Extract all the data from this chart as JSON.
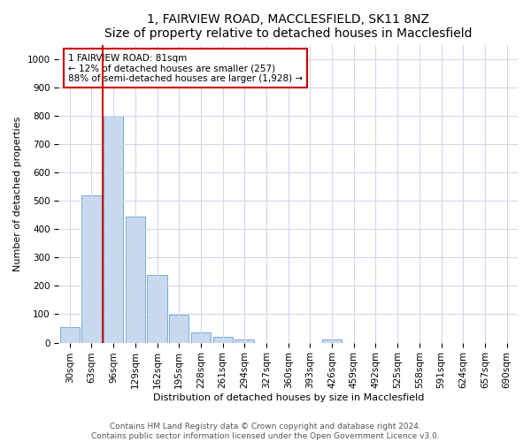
{
  "title1": "1, FAIRVIEW ROAD, MACCLESFIELD, SK11 8NZ",
  "title2": "Size of property relative to detached houses in Macclesfield",
  "xlabel": "Distribution of detached houses by size in Macclesfield",
  "ylabel": "Number of detached properties",
  "categories": [
    "30sqm",
    "63sqm",
    "96sqm",
    "129sqm",
    "162sqm",
    "195sqm",
    "228sqm",
    "261sqm",
    "294sqm",
    "327sqm",
    "360sqm",
    "393sqm",
    "426sqm",
    "459sqm",
    "492sqm",
    "525sqm",
    "558sqm",
    "591sqm",
    "624sqm",
    "657sqm",
    "690sqm"
  ],
  "values": [
    55,
    520,
    800,
    445,
    240,
    98,
    37,
    20,
    12,
    0,
    0,
    0,
    10,
    0,
    0,
    0,
    0,
    0,
    0,
    0,
    0
  ],
  "bar_color": "#c8d8ef",
  "bar_edgecolor": "#7aaad0",
  "vline_x": 1.5,
  "vline_color": "#cc0000",
  "annotation_title": "1 FAIRVIEW ROAD: 81sqm",
  "annotation_line1": "← 12% of detached houses are smaller (257)",
  "annotation_line2": "88% of semi-detached houses are larger (1,928) →",
  "annotation_box_color": "#cc0000",
  "ylim": [
    0,
    1050
  ],
  "yticks": [
    0,
    100,
    200,
    300,
    400,
    500,
    600,
    700,
    800,
    900,
    1000
  ],
  "footer1": "Contains HM Land Registry data © Crown copyright and database right 2024.",
  "footer2": "Contains public sector information licensed under the Open Government Licence v3.0.",
  "background_color": "#ffffff",
  "plot_background": "#ffffff",
  "grid_color": "#d0d8e8",
  "title_fontsize": 10,
  "subtitle_fontsize": 9,
  "axis_fontsize": 8,
  "tick_fontsize": 7.5,
  "footer_fontsize": 6.5
}
